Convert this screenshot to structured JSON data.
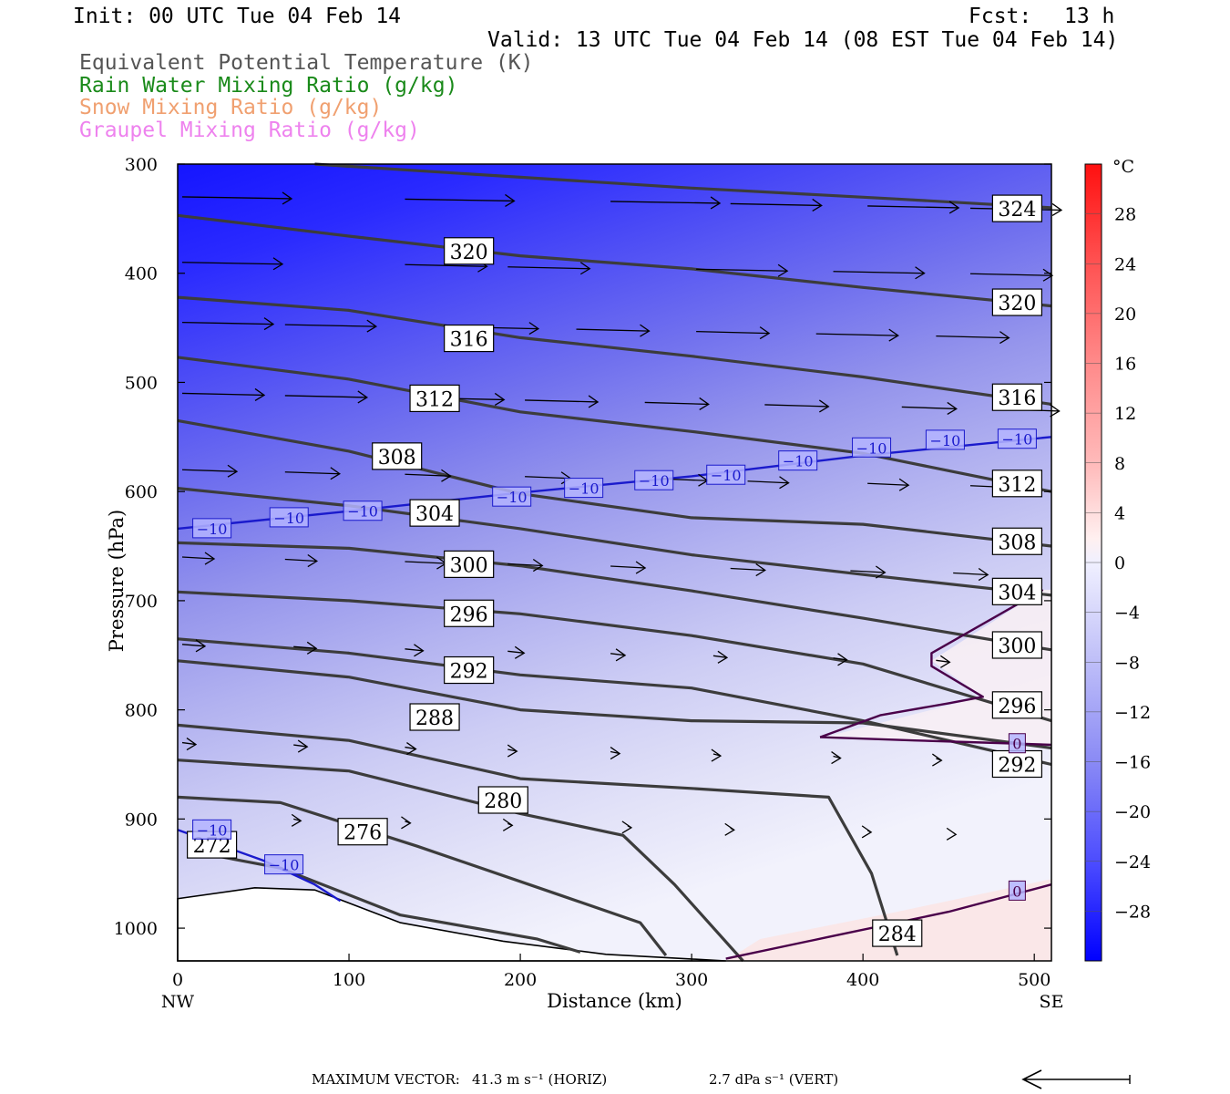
{
  "header": {
    "init": "Init: 00 UTC Tue 04 Feb 14",
    "fcst_label": "Fcst:",
    "fcst_value": "13 h",
    "valid": "Valid: 13 UTC Tue 04 Feb 14 (08 EST Tue 04 Feb 14)"
  },
  "legend_titles": [
    {
      "text": "Equivalent Potential Temperature (K)",
      "color": "#555555"
    },
    {
      "text": "Rain Water Mixing Ratio (g/kg)",
      "color": "#1a8a1a"
    },
    {
      "text": "Snow Mixing Ratio (g/kg)",
      "color": "#f0a070"
    },
    {
      "text": "Graupel Mixing Ratio (g/kg)",
      "color": "#ee82ee"
    }
  ],
  "footer": {
    "max_vector_label": "MAXIMUM VECTOR:",
    "horiz": "41.3 m s⁻¹ (HORIZ)",
    "vert": "2.7 dPa s⁻¹ (VERT)"
  },
  "chart_data": {
    "type": "contour",
    "xlabel": "Distance (km)",
    "ylabel": "Pressure (hPa)",
    "x_ticks": [
      0,
      100,
      200,
      300,
      400,
      500
    ],
    "y_ticks": [
      300,
      400,
      500,
      600,
      700,
      800,
      900,
      1000
    ],
    "xlim": [
      0,
      510
    ],
    "ylim": [
      300,
      1030
    ],
    "x_end_labels": {
      "left": "NW",
      "right": "SE"
    },
    "colorbar": {
      "unit": "°C",
      "tick_labels": [
        "28",
        "24",
        "20",
        "16",
        "12",
        "8",
        "4",
        "0",
        "−4",
        "−8",
        "−12",
        "−16",
        "−20",
        "−24",
        "−28"
      ],
      "tick_values": [
        28,
        24,
        20,
        16,
        12,
        8,
        4,
        0,
        -4,
        -8,
        -12,
        -16,
        -20,
        -24,
        -28
      ],
      "range": [
        -32,
        32
      ],
      "cold_color": "#0000ff",
      "warm_color": "#ff0000"
    },
    "theta_e_contours": [
      {
        "value": "324",
        "points": [
          [
            80,
            300
          ],
          [
            200,
            312
          ],
          [
            300,
            322
          ],
          [
            420,
            332
          ],
          [
            510,
            340
          ]
        ],
        "labels": [
          [
            490,
            341
          ]
        ]
      },
      {
        "value": "320",
        "points": [
          [
            0,
            347
          ],
          [
            100,
            366
          ],
          [
            200,
            384
          ],
          [
            300,
            396
          ],
          [
            400,
            413
          ],
          [
            510,
            430
          ]
        ],
        "labels": [
          [
            170,
            380
          ],
          [
            490,
            427
          ]
        ]
      },
      {
        "value": "316",
        "points": [
          [
            0,
            422
          ],
          [
            100,
            434
          ],
          [
            200,
            459
          ],
          [
            300,
            476
          ],
          [
            400,
            495
          ],
          [
            510,
            520
          ]
        ],
        "labels": [
          [
            170,
            460
          ],
          [
            490,
            514
          ]
        ]
      },
      {
        "value": "312",
        "points": [
          [
            0,
            477
          ],
          [
            100,
            497
          ],
          [
            200,
            527
          ],
          [
            300,
            545
          ],
          [
            400,
            565
          ],
          [
            510,
            600
          ]
        ],
        "labels": [
          [
            150,
            515
          ],
          [
            490,
            593
          ]
        ]
      },
      {
        "value": "308",
        "points": [
          [
            0,
            535
          ],
          [
            100,
            563
          ],
          [
            200,
            602
          ],
          [
            300,
            624
          ],
          [
            400,
            630
          ],
          [
            510,
            650
          ]
        ],
        "labels": [
          [
            128,
            568
          ],
          [
            490,
            646
          ]
        ]
      },
      {
        "value": "304",
        "points": [
          [
            0,
            597
          ],
          [
            100,
            613
          ],
          [
            200,
            634
          ],
          [
            300,
            658
          ],
          [
            400,
            676
          ],
          [
            510,
            695
          ]
        ],
        "labels": [
          [
            150,
            620
          ],
          [
            490,
            692
          ]
        ]
      },
      {
        "value": "300",
        "points": [
          [
            0,
            647
          ],
          [
            100,
            652
          ],
          [
            200,
            668
          ],
          [
            300,
            691
          ],
          [
            400,
            716
          ],
          [
            510,
            745
          ]
        ],
        "labels": [
          [
            170,
            667
          ],
          [
            490,
            741
          ]
        ]
      },
      {
        "value": "296",
        "points": [
          [
            0,
            692
          ],
          [
            100,
            700
          ],
          [
            200,
            712
          ],
          [
            300,
            732
          ],
          [
            400,
            758
          ],
          [
            510,
            810
          ]
        ],
        "labels": [
          [
            170,
            712
          ],
          [
            490,
            796
          ]
        ]
      },
      {
        "value": "292",
        "points": [
          [
            0,
            735
          ],
          [
            100,
            748
          ],
          [
            200,
            768
          ],
          [
            300,
            780
          ],
          [
            400,
            810
          ],
          [
            510,
            850
          ]
        ],
        "labels": [
          [
            170,
            764
          ],
          [
            490,
            850
          ]
        ]
      },
      {
        "value": "288",
        "points": [
          [
            0,
            755
          ],
          [
            100,
            770
          ],
          [
            200,
            800
          ],
          [
            300,
            810
          ],
          [
            400,
            812
          ],
          [
            510,
            835
          ]
        ],
        "labels": [
          [
            150,
            807
          ]
        ]
      },
      {
        "value": "284",
        "points": [
          [
            0,
            814
          ],
          [
            100,
            828
          ],
          [
            200,
            863
          ],
          [
            300,
            872
          ],
          [
            380,
            880
          ],
          [
            405,
            950
          ],
          [
            420,
            1025
          ]
        ],
        "labels": [
          [
            420,
            1005
          ]
        ]
      },
      {
        "value": "280",
        "points": [
          [
            0,
            846
          ],
          [
            100,
            856
          ],
          [
            200,
            895
          ],
          [
            260,
            915
          ],
          [
            290,
            960
          ],
          [
            330,
            1030
          ]
        ],
        "labels": [
          [
            190,
            883
          ]
        ]
      },
      {
        "value": "276",
        "points": [
          [
            0,
            880
          ],
          [
            60,
            885
          ],
          [
            140,
            925
          ],
          [
            220,
            968
          ],
          [
            270,
            995
          ],
          [
            285,
            1025
          ]
        ],
        "labels": [
          [
            108,
            912
          ]
        ]
      },
      {
        "value": "272",
        "points": [
          [
            10,
            930
          ],
          [
            60,
            945
          ],
          [
            130,
            988
          ],
          [
            210,
            1010
          ],
          [
            235,
            1022
          ]
        ],
        "labels": [
          [
            20,
            924
          ]
        ]
      }
    ],
    "isotherms": [
      {
        "value": "−10",
        "points": [
          [
            0,
            634
          ],
          [
            100,
            618
          ],
          [
            200,
            601
          ],
          [
            300,
            586
          ],
          [
            400,
            567
          ],
          [
            510,
            550
          ]
        ],
        "labels": [
          [
            20,
            634
          ],
          [
            65,
            624
          ],
          [
            108,
            618
          ],
          [
            195,
            605
          ],
          [
            237,
            597
          ],
          [
            278,
            590
          ],
          [
            320,
            585
          ],
          [
            362,
            572
          ],
          [
            405,
            560
          ],
          [
            448,
            553
          ],
          [
            490,
            552
          ]
        ]
      },
      {
        "value": "−10",
        "points": [
          [
            0,
            910
          ],
          [
            50,
            938
          ],
          [
            80,
            960
          ],
          [
            95,
            975
          ]
        ],
        "labels": [
          [
            20,
            910
          ],
          [
            62,
            942
          ]
        ]
      },
      {
        "value": "0",
        "points": [
          [
            375,
            825
          ],
          [
            410,
            805
          ],
          [
            450,
            794
          ],
          [
            470,
            788
          ],
          [
            440,
            760
          ],
          [
            440,
            748
          ],
          [
            505,
            690
          ]
        ],
        "labels": []
      },
      {
        "value": "0",
        "points": [
          [
            375,
            825
          ],
          [
            430,
            828
          ],
          [
            470,
            830
          ],
          [
            510,
            832
          ]
        ],
        "labels": [
          [
            490,
            831
          ]
        ]
      },
      {
        "value": "0",
        "points": [
          [
            320,
            1028
          ],
          [
            380,
            1008
          ],
          [
            450,
            985
          ],
          [
            510,
            960
          ]
        ],
        "labels": [
          [
            490,
            966
          ]
        ]
      }
    ]
  }
}
